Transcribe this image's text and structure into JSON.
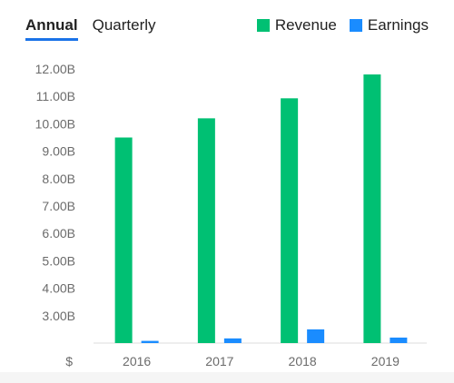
{
  "tabs": [
    {
      "label": "Annual",
      "active": true
    },
    {
      "label": "Quarterly",
      "active": false
    }
  ],
  "legend": [
    {
      "label": "Revenue",
      "color": "#00c073"
    },
    {
      "label": "Earnings",
      "color": "#1a8cff"
    }
  ],
  "chart_data": {
    "type": "bar",
    "categories": [
      "2016",
      "2017",
      "2018",
      "2019"
    ],
    "series": [
      {
        "name": "Revenue",
        "color": "#00c073",
        "values": [
          9.5,
          10.2,
          10.93,
          11.8
        ]
      },
      {
        "name": "Earnings",
        "color": "#1a8cff",
        "values": [
          2.08,
          2.17,
          2.5,
          2.2
        ]
      }
    ],
    "yticks": [
      "12.00B",
      "11.00B",
      "10.00B",
      "9.00B",
      "8.00B",
      "7.00B",
      "6.00B",
      "5.00B",
      "4.00B",
      "3.00B"
    ],
    "ytick_values": [
      12,
      11,
      10,
      9,
      8,
      7,
      6,
      5,
      4,
      3
    ],
    "ylim": [
      2.0,
      12.0
    ],
    "currency_label": "$",
    "grid": false
  }
}
